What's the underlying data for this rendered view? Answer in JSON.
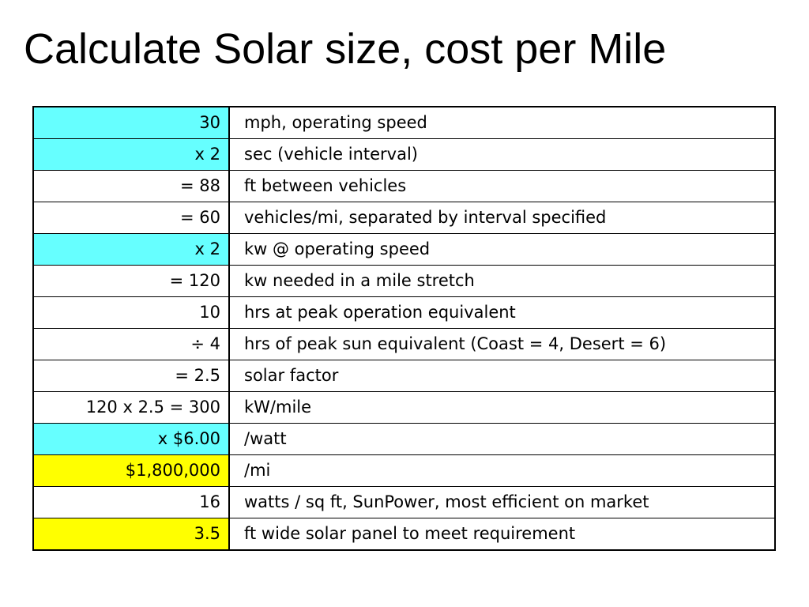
{
  "slide": {
    "title": "Calculate Solar size, cost per Mile"
  },
  "colors": {
    "input_highlight": "#66ffff",
    "result_highlight": "#ffff00",
    "default": "#ffffff"
  },
  "table": {
    "rows": [
      {
        "value": "30",
        "description": "mph, operating speed",
        "highlight": "cyan"
      },
      {
        "value": "x 2",
        "description": "sec (vehicle interval)",
        "highlight": "cyan"
      },
      {
        "value": "= 88",
        "description": "ft between vehicles",
        "highlight": "none"
      },
      {
        "value": "= 60",
        "description": "vehicles/mi, separated by interval specified",
        "highlight": "none"
      },
      {
        "value": "x 2",
        "description": "kw @ operating speed",
        "highlight": "cyan"
      },
      {
        "value": "= 120",
        "description": "kw needed in a mile stretch",
        "highlight": "none"
      },
      {
        "value": "10",
        "description": "hrs at peak operation equivalent",
        "highlight": "none"
      },
      {
        "value": "÷ 4",
        "description": "hrs of peak sun equivalent (Coast = 4, Desert = 6)",
        "highlight": "none"
      },
      {
        "value": "= 2.5",
        "description": "solar factor",
        "highlight": "none"
      },
      {
        "value": "120 x 2.5 = 300",
        "description": "kW/mile",
        "highlight": "none"
      },
      {
        "value": "x $6.00",
        "description": "/watt",
        "highlight": "cyan"
      },
      {
        "value": "$1,800,000",
        "description": "/mi",
        "highlight": "yellow"
      },
      {
        "value": "16",
        "description": "watts / sq ft, SunPower, most efficient on market",
        "highlight": "none"
      },
      {
        "value": "3.5",
        "description": "ft wide solar panel to meet requirement",
        "highlight": "yellow"
      }
    ]
  }
}
